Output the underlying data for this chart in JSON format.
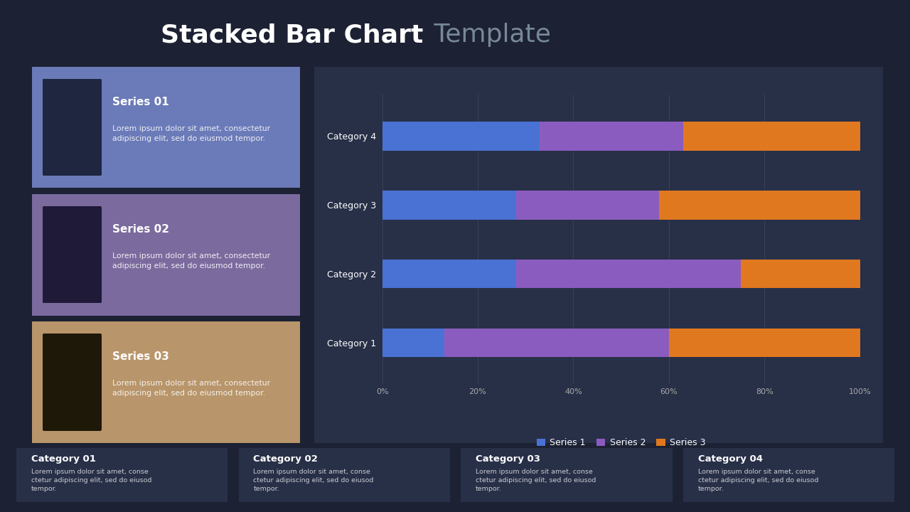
{
  "title_bold": "Stacked Bar Chart",
  "title_light": " Template",
  "bg_color": "#1c2133",
  "chart_bg": "#283048",
  "card_bg": "#283048",
  "series_cards": [
    {
      "title": "Series 01",
      "text": "Lorem ipsum dolor sit amet, consectetur\nadipiscing elit, sed do eiusmod tempor.",
      "bg_color": "#6b7ab8",
      "icon_bg": "#1e2640"
    },
    {
      "title": "Series 02",
      "text": "Lorem ipsum dolor sit amet, consectetur\nadipiscing elit, sed do eiusmod tempor.",
      "bg_color": "#7b6a9e",
      "icon_bg": "#1e1a38"
    },
    {
      "title": "Series 03",
      "text": "Lorem ipsum dolor sit amet, consectetur\nadipiscing elit, sed do eiusmod tempor.",
      "bg_color": "#b8956a",
      "icon_bg": "#1e1808"
    }
  ],
  "categories": [
    "Category 1",
    "Category 2",
    "Category 3",
    "Category 4"
  ],
  "series1_values": [
    13,
    28,
    28,
    33
  ],
  "series2_values": [
    47,
    47,
    30,
    30
  ],
  "series3_values": [
    40,
    25,
    42,
    37
  ],
  "series1_color": "#4a72d4",
  "series2_color": "#8b5cbf",
  "series3_color": "#e07820",
  "legend_labels": [
    "Series 1",
    "Series 2",
    "Series 3"
  ],
  "category_cards": [
    {
      "title": "Category 01",
      "text": "Lorem ipsum dolor sit amet, conse\nctetur adipiscing elit, sed do eiusod\ntempor."
    },
    {
      "title": "Category 02",
      "text": "Lorem ipsum dolor sit amet, conse\nctetur adipiscing elit, sed do eiusod\ntempor."
    },
    {
      "title": "Category 03",
      "text": "Lorem ipsum dolor sit amet, conse\nctetur adipiscing elit, sed do eiusod\ntempor."
    },
    {
      "title": "Category 04",
      "text": "Lorem ipsum dolor sit amet, conse\nctetur adipiscing elit, sed do eiusod\ntempor."
    }
  ],
  "text_white": "#ffffff",
  "text_light_gray": "#aaaaaa",
  "text_gray_blue": "#778899"
}
